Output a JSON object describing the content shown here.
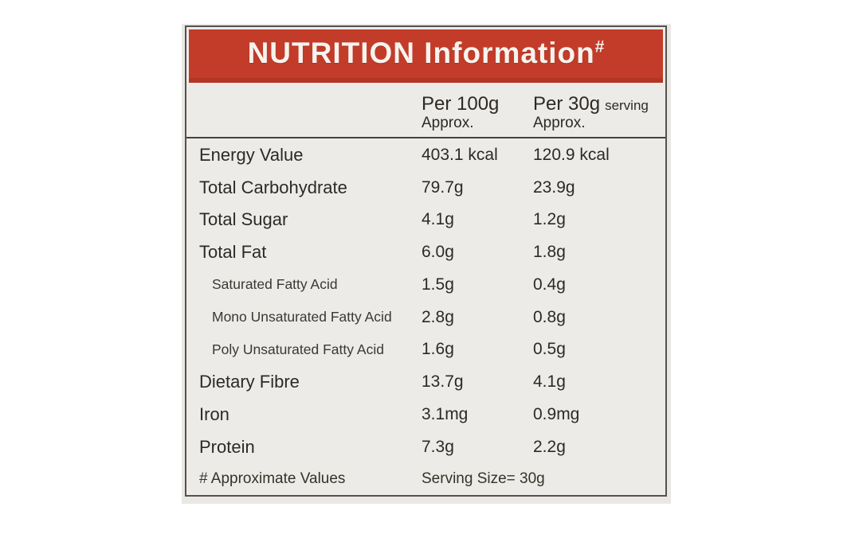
{
  "label": {
    "title": "NUTRITION Information",
    "title_superscript": "#",
    "columns": {
      "per100_label": "Per 100g",
      "per100_sub": "Approx.",
      "per30_label": "Per 30g",
      "per30_suffix": "serving",
      "per30_sub": "Approx."
    },
    "rows": [
      {
        "name": "Energy Value",
        "per100": "403.1 kcal",
        "per30": "120.9 kcal",
        "sub": false
      },
      {
        "name": "Total Carbohydrate",
        "per100": "79.7g",
        "per30": "23.9g",
        "sub": false
      },
      {
        "name": "Total Sugar",
        "per100": "4.1g",
        "per30": "1.2g",
        "sub": false
      },
      {
        "name": "Total Fat",
        "per100": "6.0g",
        "per30": "1.8g",
        "sub": false
      },
      {
        "name": "Saturated Fatty Acid",
        "per100": "1.5g",
        "per30": "0.4g",
        "sub": true
      },
      {
        "name": "Mono Unsaturated Fatty Acid",
        "per100": "2.8g",
        "per30": "0.8g",
        "sub": true
      },
      {
        "name": "Poly Unsaturated Fatty Acid",
        "per100": "1.6g",
        "per30": "0.5g",
        "sub": true
      },
      {
        "name": "Dietary Fibre",
        "per100": "13.7g",
        "per30": "4.1g",
        "sub": false
      },
      {
        "name": "Iron",
        "per100": "3.1mg",
        "per30": "0.9mg",
        "sub": false
      },
      {
        "name": "Protein",
        "per100": "7.3g",
        "per30": "2.2g",
        "sub": false
      }
    ],
    "footer": {
      "note": "# Approximate Values",
      "serving": "Serving Size= 30g"
    },
    "colors": {
      "band_red": "#c33c2a",
      "band_red_dark": "#b23624",
      "label_bg": "#edebe8",
      "border": "#55514b",
      "text": "#2d2a26",
      "title_text": "#f6f3ee"
    }
  }
}
